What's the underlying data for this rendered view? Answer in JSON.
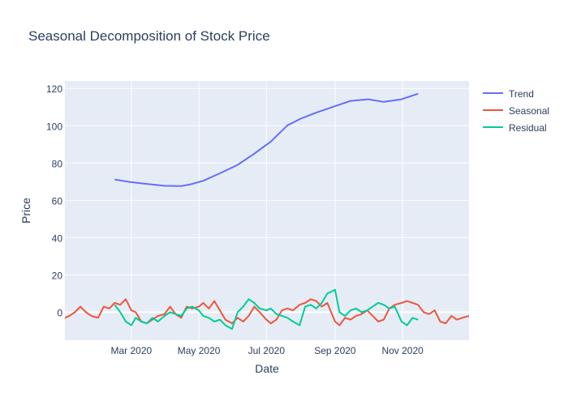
{
  "chart_data": {
    "type": "line",
    "title": "Seasonal Decomposition of Stock Price",
    "xlabel": "Date",
    "ylabel": "Price",
    "x_range": [
      "2020-01-01",
      "2020-12-31"
    ],
    "ylim": [
      -15,
      124
    ],
    "y_ticks": [
      0,
      20,
      40,
      60,
      80,
      100,
      120
    ],
    "x_ticks": [
      {
        "date": "2020-03-01",
        "label": "Mar 2020"
      },
      {
        "date": "2020-05-01",
        "label": "May 2020"
      },
      {
        "date": "2020-07-01",
        "label": "Jul 2020"
      },
      {
        "date": "2020-09-01",
        "label": "Sep 2020"
      },
      {
        "date": "2020-11-01",
        "label": "Nov 2020"
      }
    ],
    "grid": true,
    "legend_position": "top-right",
    "plot_background": "#E5ECF6",
    "series": [
      {
        "name": "Trend",
        "color": "#636EFA",
        "x": [
          "2020-02-15",
          "2020-02-29",
          "2020-03-15",
          "2020-03-31",
          "2020-04-15",
          "2020-04-25",
          "2020-05-05",
          "2020-05-20",
          "2020-06-05",
          "2020-06-20",
          "2020-07-05",
          "2020-07-20",
          "2020-08-01",
          "2020-08-15",
          "2020-09-01",
          "2020-09-15",
          "2020-10-01",
          "2020-10-15",
          "2020-10-31",
          "2020-11-15"
        ],
        "y": [
          71.2,
          69.8,
          68.8,
          67.8,
          67.6,
          68.8,
          70.5,
          74.5,
          79.0,
          85.0,
          91.5,
          100.2,
          103.8,
          107.0,
          110.5,
          113.3,
          114.2,
          112.8,
          114.2,
          117.2
        ]
      },
      {
        "name": "Seasonal",
        "color": "#EF553B",
        "x": [
          "2020-01-01",
          "2020-01-05",
          "2020-01-10",
          "2020-01-15",
          "2020-01-20",
          "2020-01-25",
          "2020-01-31",
          "2020-02-05",
          "2020-02-10",
          "2020-02-15",
          "2020-02-20",
          "2020-02-25",
          "2020-03-01",
          "2020-03-05",
          "2020-03-10",
          "2020-03-15",
          "2020-03-20",
          "2020-03-25",
          "2020-03-31",
          "2020-04-05",
          "2020-04-10",
          "2020-04-15",
          "2020-04-20",
          "2020-04-25",
          "2020-05-01",
          "2020-05-05",
          "2020-05-10",
          "2020-05-15",
          "2020-05-20",
          "2020-05-25",
          "2020-05-31",
          "2020-06-05",
          "2020-06-10",
          "2020-06-15",
          "2020-06-20",
          "2020-06-25",
          "2020-07-01",
          "2020-07-05",
          "2020-07-10",
          "2020-07-15",
          "2020-07-20",
          "2020-07-25",
          "2020-07-31",
          "2020-08-05",
          "2020-08-10",
          "2020-08-15",
          "2020-08-20",
          "2020-08-25",
          "2020-09-01",
          "2020-09-05",
          "2020-09-10",
          "2020-09-15",
          "2020-09-20",
          "2020-09-25",
          "2020-09-30",
          "2020-10-05",
          "2020-10-10",
          "2020-10-15",
          "2020-10-20",
          "2020-10-25",
          "2020-10-31",
          "2020-11-05",
          "2020-11-10",
          "2020-11-15",
          "2020-11-20",
          "2020-11-25",
          "2020-11-30",
          "2020-12-05",
          "2020-12-10",
          "2020-12-15",
          "2020-12-20",
          "2020-12-25",
          "2020-12-31"
        ],
        "y": [
          -3,
          -2,
          0,
          3,
          0,
          -2,
          -3,
          3,
          2,
          5,
          4,
          7,
          1,
          0,
          -5,
          -6,
          -4,
          -2,
          -1,
          3,
          -1,
          -3,
          3,
          2,
          3,
          5,
          2,
          6,
          1,
          -4,
          -6,
          -3,
          -5,
          -2,
          3,
          0,
          -4,
          -6,
          -4,
          1,
          2,
          1,
          4,
          5,
          7,
          6,
          3,
          5,
          -5,
          -7,
          -3,
          -4,
          -2,
          -1,
          1,
          -2,
          -5,
          -4,
          2,
          4,
          5,
          6,
          5,
          4,
          0,
          -1,
          1,
          -5,
          -6,
          -2,
          -4,
          -3,
          -2
        ]
      },
      {
        "name": "Residual",
        "color": "#00CC96",
        "x": [
          "2020-02-15",
          "2020-02-20",
          "2020-02-25",
          "2020-03-01",
          "2020-03-05",
          "2020-03-10",
          "2020-03-15",
          "2020-03-20",
          "2020-03-25",
          "2020-03-31",
          "2020-04-05",
          "2020-04-10",
          "2020-04-15",
          "2020-04-20",
          "2020-04-25",
          "2020-05-01",
          "2020-05-05",
          "2020-05-10",
          "2020-05-15",
          "2020-05-20",
          "2020-05-25",
          "2020-05-31",
          "2020-06-05",
          "2020-06-10",
          "2020-06-15",
          "2020-06-20",
          "2020-06-25",
          "2020-07-01",
          "2020-07-05",
          "2020-07-10",
          "2020-07-15",
          "2020-07-20",
          "2020-07-25",
          "2020-07-31",
          "2020-08-05",
          "2020-08-10",
          "2020-08-15",
          "2020-08-20",
          "2020-08-25",
          "2020-09-01",
          "2020-09-05",
          "2020-09-10",
          "2020-09-15",
          "2020-09-20",
          "2020-09-25",
          "2020-09-30",
          "2020-10-05",
          "2020-10-10",
          "2020-10-15",
          "2020-10-20",
          "2020-10-25",
          "2020-10-31",
          "2020-11-05",
          "2020-11-10",
          "2020-11-15"
        ],
        "y": [
          4,
          0,
          -5,
          -7,
          -3,
          -5,
          -6,
          -3,
          -5,
          -2,
          0,
          -1,
          -2,
          2,
          3,
          1,
          -2,
          -3,
          -5,
          -4,
          -7,
          -9,
          0,
          3,
          7,
          5,
          2,
          1,
          2,
          -1,
          -2,
          -3,
          -5,
          -7,
          3,
          4,
          2,
          5,
          10,
          12,
          0,
          -2,
          1,
          2,
          0,
          1,
          3,
          5,
          4,
          2,
          3,
          -5,
          -7,
          -3,
          -4
        ]
      }
    ]
  }
}
